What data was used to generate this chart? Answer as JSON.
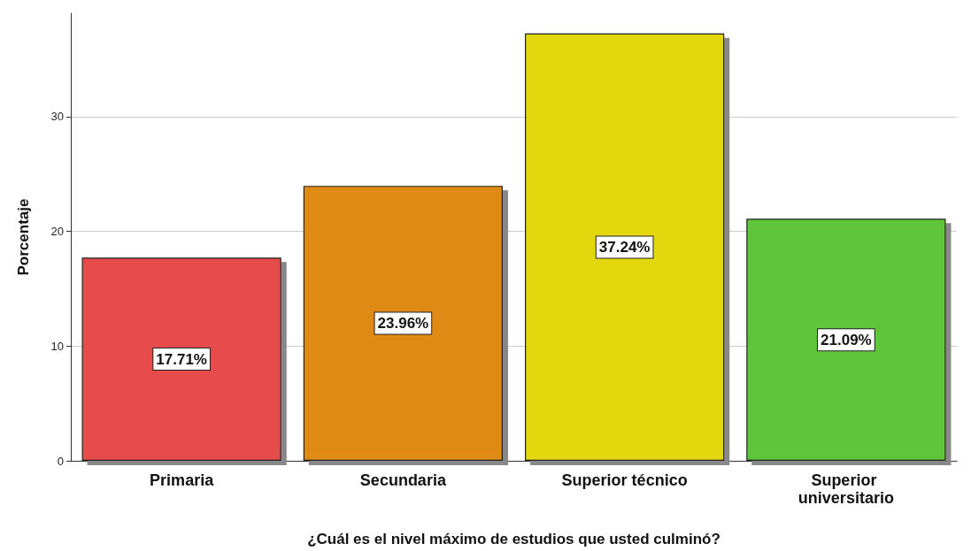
{
  "chart_data": {
    "type": "bar",
    "xlabel": "¿Cuál es el nivel máximo de estudios que usted culminó?",
    "ylabel": "Porcentaje",
    "categories": [
      "Primaria",
      "Secundaria",
      "Superior técnico",
      "Superior universitario"
    ],
    "values": [
      17.71,
      23.96,
      37.24,
      21.09
    ],
    "colors": [
      "#e84c4c",
      "#e08a12",
      "#e2d80f",
      "#5fc53a"
    ],
    "value_labels": [
      "17.71%",
      "23.96%",
      "37.24%",
      "21.09%"
    ],
    "ylim": [
      0,
      39
    ],
    "yticks": [
      0,
      10,
      20,
      30
    ],
    "grid": "y"
  }
}
